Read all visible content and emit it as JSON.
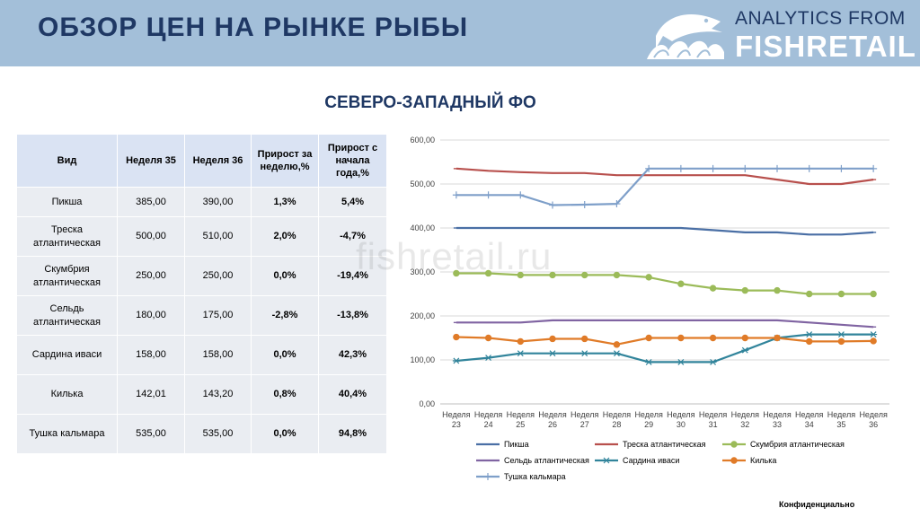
{
  "header": {
    "title": "ОБЗОР ЦЕН НА РЫНКЕ РЫБЫ",
    "brand_top": "ANALYTICS FROM",
    "brand_bottom": "FISHRETAIL"
  },
  "region_title": "СЕВЕРО-ЗАПАДНЫЙ ФО",
  "table": {
    "headers": [
      "Вид",
      "Неделя 35",
      "Неделя 36",
      "Прирост за неделю,%",
      "Прирост с начала года,%"
    ],
    "rows": [
      [
        "Пикша",
        "385,00",
        "390,00",
        "1,3%",
        "5,4%"
      ],
      [
        "Треска атлантическая",
        "500,00",
        "510,00",
        "2,0%",
        "-4,7%"
      ],
      [
        "Скумбрия атлантическая",
        "250,00",
        "250,00",
        "0,0%",
        "-19,4%"
      ],
      [
        "Сельдь атлантическая",
        "180,00",
        "175,00",
        "-2,8%",
        "-13,8%"
      ],
      [
        "Сардина иваси",
        "158,00",
        "158,00",
        "0,0%",
        "42,3%"
      ],
      [
        "Килька",
        "142,01",
        "143,20",
        "0,8%",
        "40,4%"
      ],
      [
        "Тушка кальмара",
        "535,00",
        "535,00",
        "0,0%",
        "94,8%"
      ]
    ]
  },
  "watermark": "fishretail.ru",
  "footer": {
    "confidential": "Конфиденциально"
  },
  "chart_data": {
    "type": "line",
    "title": "",
    "xlabel": "",
    "ylabel": "",
    "ylim": [
      0,
      600
    ],
    "ytick_labels": [
      "0,00",
      "100,00",
      "200,00",
      "300,00",
      "400,00",
      "500,00",
      "600,00"
    ],
    "grid": true,
    "legend_position": "bottom",
    "categories": [
      "Неделя 23",
      "Неделя 24",
      "Неделя 25",
      "Неделя 26",
      "Неделя 27",
      "Неделя 28",
      "Неделя 29",
      "Неделя 30",
      "Неделя 31",
      "Неделя 32",
      "Неделя 33",
      "Неделя 34",
      "Неделя 35",
      "Неделя 36"
    ],
    "series": [
      {
        "name": "Пикша",
        "color": "#4a6fa5",
        "marker": "line",
        "values": [
          400,
          400,
          400,
          400,
          400,
          400,
          400,
          400,
          395,
          390,
          390,
          385,
          385,
          390
        ]
      },
      {
        "name": "Треска атлантическая",
        "color": "#b8504d",
        "marker": "line",
        "values": [
          535,
          530,
          527,
          525,
          525,
          520,
          520,
          520,
          520,
          520,
          510,
          500,
          500,
          510
        ]
      },
      {
        "name": "Скумбрия атлантическая",
        "color": "#9bbb59",
        "marker": "circle",
        "values": [
          297,
          297,
          293,
          293,
          293,
          293,
          288,
          273,
          263,
          258,
          258,
          250,
          250,
          250
        ]
      },
      {
        "name": "Сельдь атлантическая",
        "color": "#8064a2",
        "marker": "line",
        "values": [
          185,
          185,
          185,
          190,
          190,
          190,
          190,
          190,
          190,
          190,
          190,
          185,
          180,
          175
        ]
      },
      {
        "name": "Сардина иваси",
        "color": "#31849b",
        "marker": "star",
        "values": [
          98,
          105,
          115,
          115,
          115,
          115,
          95,
          95,
          95,
          122,
          150,
          158,
          158,
          158
        ]
      },
      {
        "name": "Килька",
        "color": "#e07b28",
        "marker": "circle",
        "values": [
          152,
          150,
          142,
          148,
          148,
          135,
          150,
          150,
          150,
          150,
          150,
          142,
          142,
          143
        ]
      },
      {
        "name": "Тушка кальмара",
        "color": "#7e9fc9",
        "marker": "plus",
        "values": [
          475,
          475,
          475,
          452,
          453,
          455,
          535,
          535,
          535,
          535,
          535,
          535,
          535,
          535
        ]
      }
    ]
  }
}
